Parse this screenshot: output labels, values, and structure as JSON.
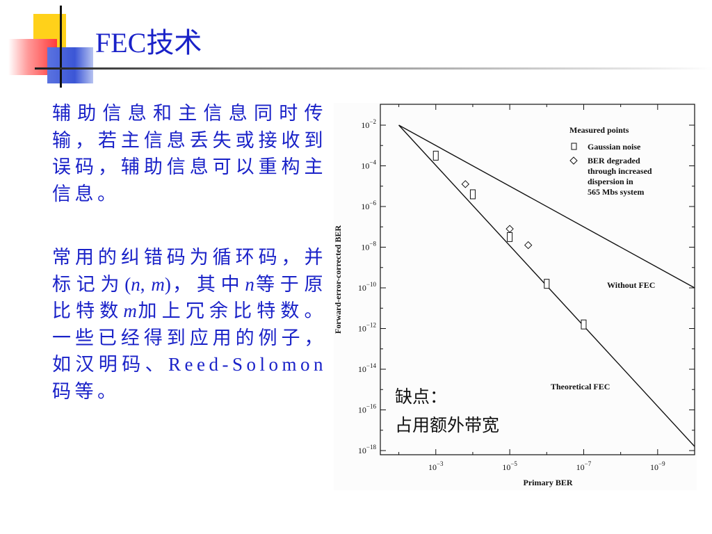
{
  "slide": {
    "title": "FEC技术"
  },
  "paragraph1": "辅助信息和主信息同时传输，若主信息丢失或接收到误码，辅助信息可以重构主信息。",
  "paragraph2": {
    "part1": "常用的纠错码为循环码，并标记为",
    "paren_open": "(",
    "n": "n",
    "comma": ", ",
    "m": "m",
    "paren_close": ")",
    "part2": "，其中",
    "n2": "n",
    "part3": "等于原比特数",
    "m2": "m",
    "part4": "加上冗余比特数。一些已经得到应用的例子，如汉明码、Reed-Solomon码等。"
  },
  "colors": {
    "text_blue": "#1a22c8",
    "deco_yellow": "#ffd11a",
    "deco_red": "#ff3b3b",
    "deco_blue": "#3b56d6"
  },
  "chart_data": {
    "type": "line",
    "xlabel": "Primary BER",
    "ylabel": "Forward-error-corrected BER",
    "x_tick_labels": [
      "10^-3",
      "10^-5",
      "10^-7",
      "10^-9"
    ],
    "y_tick_labels": [
      "10^-2",
      "10^-4",
      "10^-6",
      "10^-8",
      "10^-10",
      "10^-12",
      "10^-14",
      "10^-16",
      "10^-18"
    ],
    "xlim_log10": [
      -1.5,
      -10
    ],
    "ylim_log10": [
      -2,
      -18
    ],
    "x_scale": "log (reversed)",
    "y_scale": "log",
    "series": [
      {
        "name": "Without FEC",
        "x_log10": [
          -2.0,
          -10.0
        ],
        "y_log10": [
          -2.0,
          -10.0
        ]
      },
      {
        "name": "Theoretical FEC",
        "x_log10": [
          -2.0,
          -10.0
        ],
        "y_log10": [
          -2.0,
          -17.8
        ]
      }
    ],
    "measured_points": [
      {
        "name": "Gaussian noise",
        "marker": "square",
        "x_log10": [
          -3.0,
          -4.0,
          -5.0,
          -6.0,
          -7.0
        ],
        "y_log10": [
          -3.5,
          -5.4,
          -7.5,
          -9.8,
          -11.8
        ]
      },
      {
        "name": "BER degraded through increased dispersion in 565 Mbs system",
        "marker": "diamond",
        "x_log10": [
          -3.8,
          -5.0,
          -5.5
        ],
        "y_log10": [
          -4.9,
          -7.1,
          -7.9
        ]
      }
    ],
    "legend": {
      "title": "Measured points",
      "entries": [
        "Gaussian noise",
        "BER degraded",
        "through increased",
        "dispersion in",
        "565 Mbs system"
      ]
    },
    "annotations": {
      "without_fec": "Without FEC",
      "theoretical_fec": "Theoretical FEC",
      "note_line1": "缺点：",
      "note_line2": "占用额外带宽"
    },
    "grid": false
  }
}
